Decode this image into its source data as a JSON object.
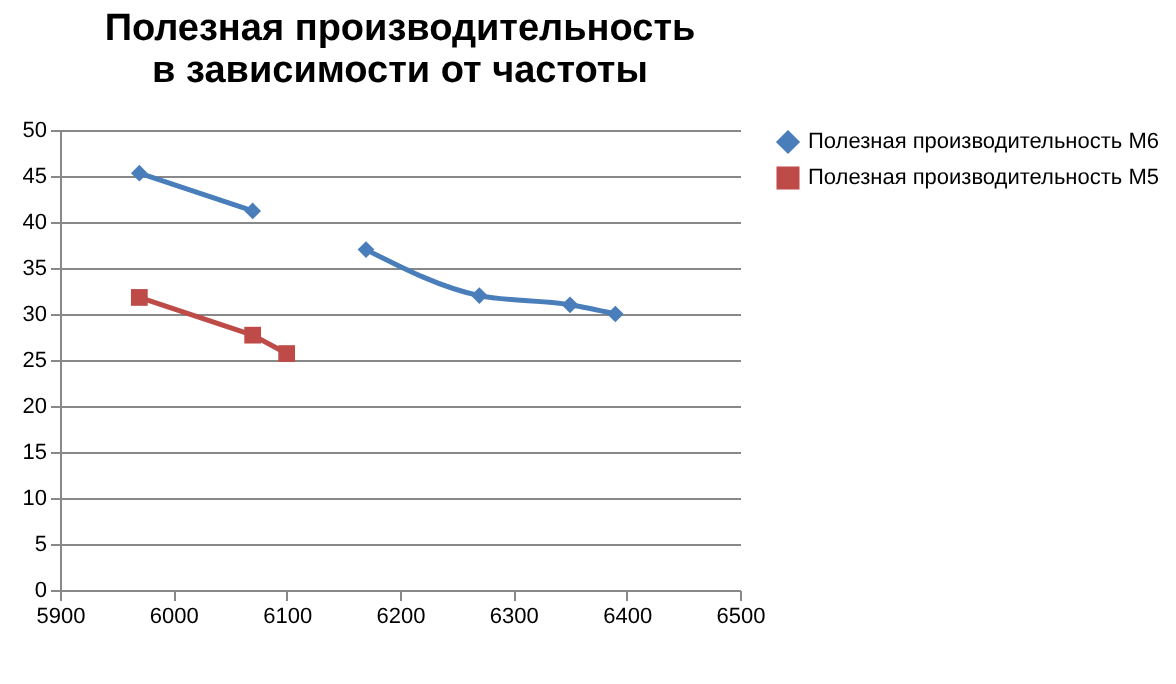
{
  "chart_data": {
    "type": "line",
    "title": "Полезная производительность в зависимости от частоты",
    "x": [
      5970,
      6070,
      6100,
      6170,
      6270,
      6350,
      6390
    ],
    "series": [
      {
        "name": "Полезная производительность М6",
        "color": "#4a7ebb",
        "marker": "diamond",
        "values": [
          45.3,
          41.2,
          null,
          37,
          32,
          31,
          30
        ]
      },
      {
        "name": "Полезная производительность М5",
        "color": "#be4b48",
        "marker": "square",
        "values": [
          31.8,
          27.7,
          25.7,
          null,
          null,
          null,
          null
        ]
      }
    ],
    "xlim": [
      5900,
      6500
    ],
    "xticks": [
      5900,
      6000,
      6100,
      6200,
      6300,
      6400,
      6500
    ],
    "ylim": [
      0,
      50
    ],
    "yticks": [
      0,
      5,
      10,
      15,
      20,
      25,
      30,
      35,
      40,
      45,
      50
    ],
    "grid": "y",
    "legend": "right"
  }
}
